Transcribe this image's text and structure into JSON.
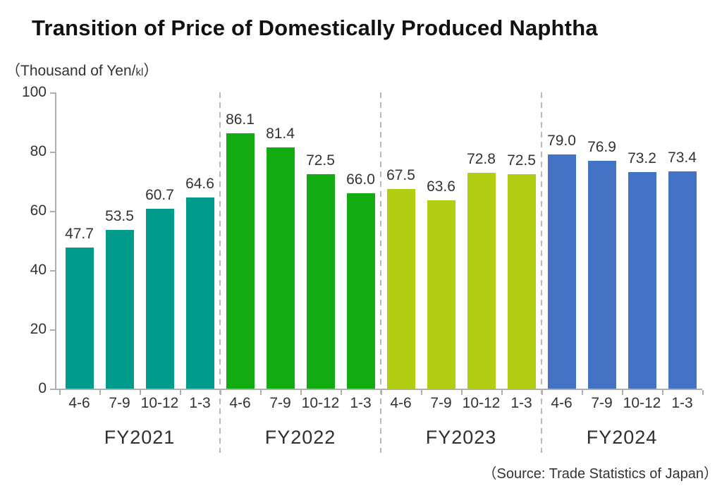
{
  "title": "Transition of Price of Domestically Produced Naphtha",
  "unit_label": {
    "prefix": "（Thousand of Yen/",
    "unit_small": "kl",
    "suffix": "）"
  },
  "source_note": "（Source: Trade Statistics of Japan）",
  "colors": {
    "background": "#FFFFFF",
    "axis": "#AEAEAE",
    "separator": "#B9B9B9",
    "text": "#333333",
    "title_text": "#111111"
  },
  "chart_data": {
    "type": "bar",
    "title": "Transition of Price of Domestically Produced Naphtha",
    "ylabel": "Thousand of Yen/kl",
    "ylim": [
      0,
      100
    ],
    "ytick_step": 20,
    "yticks": [
      0,
      20,
      40,
      60,
      80,
      100
    ],
    "grid": false,
    "value_labels_shown": true,
    "value_label_decimals": 1,
    "group_separator_style": "dashed",
    "categories_per_group": [
      "4-6",
      "7-9",
      "10-12",
      "1-3"
    ],
    "groups": [
      {
        "label": "FY2021",
        "color": "#009B8B",
        "values": [
          47.7,
          53.5,
          60.7,
          64.6
        ]
      },
      {
        "label": "FY2022",
        "color": "#12AC12",
        "values": [
          86.1,
          81.4,
          72.5,
          66.0
        ]
      },
      {
        "label": "FY2023",
        "color": "#B3CD13",
        "values": [
          67.5,
          63.6,
          72.8,
          72.5
        ]
      },
      {
        "label": "FY2024",
        "color": "#4472C4",
        "values": [
          79.0,
          76.9,
          73.2,
          73.4
        ]
      }
    ]
  }
}
